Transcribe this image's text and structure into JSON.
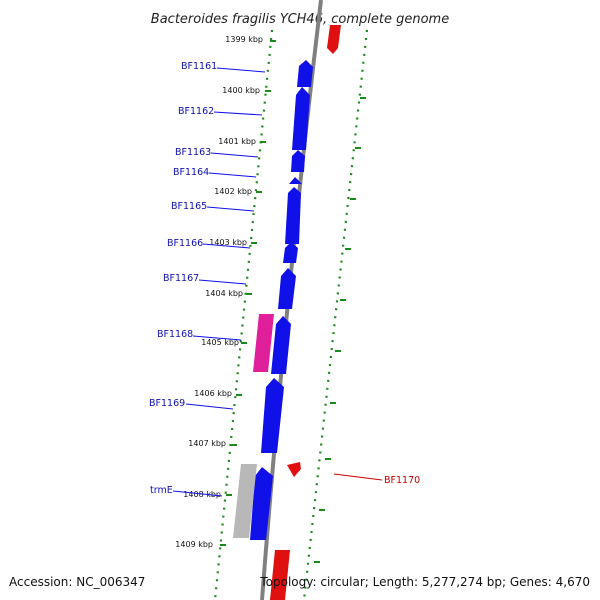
{
  "title": "Bacteroides fragilis YCH46, complete genome",
  "footer": {
    "accession": "Accession: NC_006347",
    "topology": "Topology: circular; Length: 5,277,274 bp; Genes: 4,670"
  },
  "kbp_labels": [
    "1399 kbp",
    "1400 kbp",
    "1401 kbp",
    "1402 kbp",
    "1403 kbp",
    "1404 kbp",
    "1405 kbp",
    "1406 kbp",
    "1407 kbp",
    "1408 kbp",
    "1409 kbp"
  ],
  "genes": [
    {
      "name": "BF1161",
      "strand": "minus",
      "color": "#1010e8"
    },
    {
      "name": "BF1162",
      "strand": "minus",
      "color": "#1010e8"
    },
    {
      "name": "BF1163",
      "strand": "minus",
      "color": "#1010e8"
    },
    {
      "name": "BF1164",
      "strand": "minus",
      "color": "#1010e8"
    },
    {
      "name": "BF1165",
      "strand": "minus",
      "color": "#1010e8"
    },
    {
      "name": "BF1166",
      "strand": "minus",
      "color": "#1010e8"
    },
    {
      "name": "BF1167",
      "strand": "minus",
      "color": "#1010e8"
    },
    {
      "name": "BF1168",
      "strand": "minus",
      "color": "#e0209a"
    },
    {
      "name": "BF1169",
      "strand": "minus",
      "color": "#1010e8"
    },
    {
      "name": "trmE",
      "strand": "minus",
      "color": "#b8b8b8"
    },
    {
      "name": "BF1170",
      "strand": "plus",
      "color": "#e01010"
    }
  ],
  "colors": {
    "backbone": "#808080",
    "tick_dots": "#1a8a1a",
    "cds_blue": "#1010e8",
    "cds_red": "#e01010",
    "cds_pink": "#e0209a",
    "cds_grey": "#b8b8b8"
  }
}
